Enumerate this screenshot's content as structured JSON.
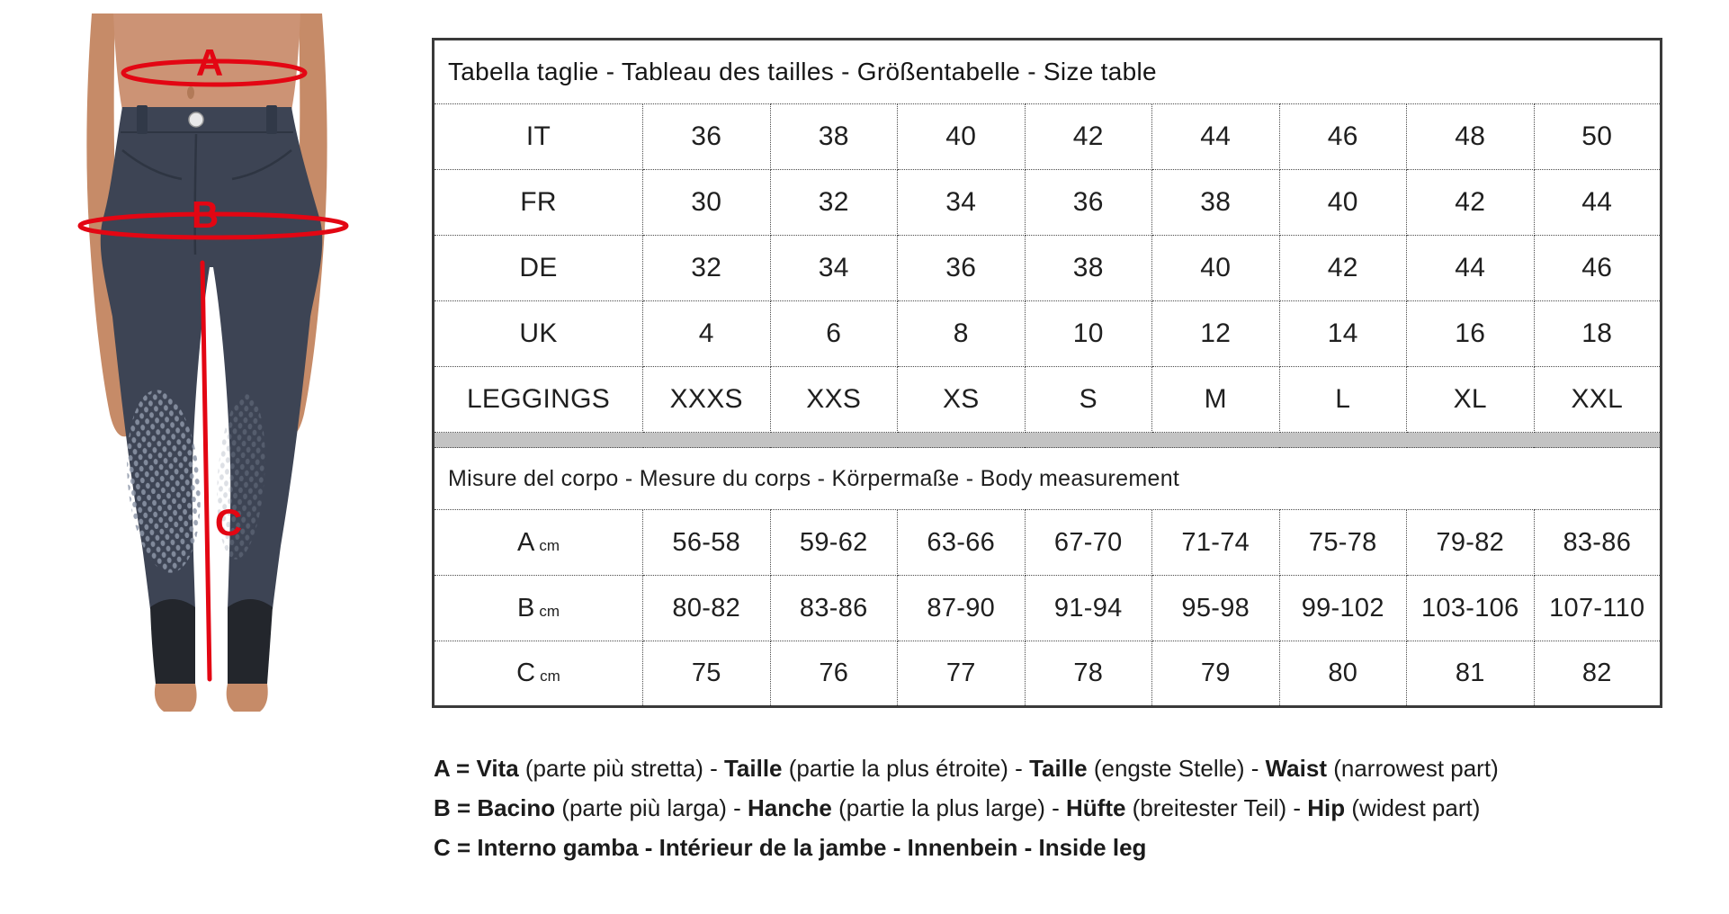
{
  "figure": {
    "annotation_color": "#e30613",
    "pants_color": "#3d4454",
    "labels": {
      "waist": "A",
      "hip": "B",
      "inseam": "C"
    }
  },
  "size_table": {
    "title": "Tabella taglie - Tableau des tailles - Größentabelle - Size table",
    "size_rows": [
      {
        "label": "IT",
        "values": [
          "36",
          "38",
          "40",
          "42",
          "44",
          "46",
          "48",
          "50"
        ]
      },
      {
        "label": "FR",
        "values": [
          "30",
          "32",
          "34",
          "36",
          "38",
          "40",
          "42",
          "44"
        ]
      },
      {
        "label": "DE",
        "values": [
          "32",
          "34",
          "36",
          "38",
          "40",
          "42",
          "44",
          "46"
        ]
      },
      {
        "label": "UK",
        "values": [
          "4",
          "6",
          "8",
          "10",
          "12",
          "14",
          "16",
          "18"
        ]
      },
      {
        "label": "LEGGINGS",
        "values": [
          "XXXS",
          "XXS",
          "XS",
          "S",
          "M",
          "L",
          "XL",
          "XXL"
        ]
      }
    ],
    "measurement_header": "Misure del corpo - Mesure du corps - Körpermaße - Body measurement",
    "measurement_rows": [
      {
        "label": "A",
        "unit": "cm",
        "values": [
          "56-58",
          "59-62",
          "63-66",
          "67-70",
          "71-74",
          "75-78",
          "79-82",
          "83-86"
        ]
      },
      {
        "label": "B",
        "unit": "cm",
        "values": [
          "80-82",
          "83-86",
          "87-90",
          "91-94",
          "95-98",
          "99-102",
          "103-106",
          "107-110"
        ]
      },
      {
        "label": "C",
        "unit": "cm",
        "values": [
          "75",
          "76",
          "77",
          "78",
          "79",
          "80",
          "81",
          "82"
        ]
      }
    ]
  },
  "legend": {
    "lines": [
      {
        "segments": [
          {
            "text": "A = Vita",
            "bold": true
          },
          {
            "text": " (parte più stretta) - ",
            "bold": false
          },
          {
            "text": "Taille",
            "bold": true
          },
          {
            "text": " (partie la plus étroite) - ",
            "bold": false
          },
          {
            "text": "Taille",
            "bold": true
          },
          {
            "text": " (engste Stelle) - ",
            "bold": false
          },
          {
            "text": "Waist",
            "bold": true
          },
          {
            "text": " (narrowest part)",
            "bold": false
          }
        ]
      },
      {
        "segments": [
          {
            "text": "B = Bacino",
            "bold": true
          },
          {
            "text": " (parte più larga) - ",
            "bold": false
          },
          {
            "text": "Hanche",
            "bold": true
          },
          {
            "text": " (partie la plus large) - ",
            "bold": false
          },
          {
            "text": "Hüfte",
            "bold": true
          },
          {
            "text": " (breitester Teil) - ",
            "bold": false
          },
          {
            "text": "Hip",
            "bold": true
          },
          {
            "text": " (widest part)",
            "bold": false
          }
        ]
      },
      {
        "segments": [
          {
            "text": "C = Interno gamba - Intérieur de la jambe - Innenbein - Inside leg",
            "bold": true
          }
        ]
      }
    ]
  }
}
